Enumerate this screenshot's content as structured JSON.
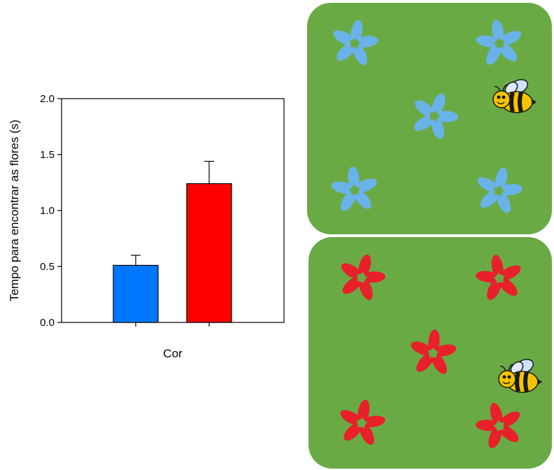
{
  "chart_data": {
    "type": "bar",
    "categories": [
      "",
      ""
    ],
    "values": [
      0.51,
      1.24
    ],
    "errors": [
      0.09,
      0.2
    ],
    "bar_colors": [
      "#0077ff",
      "#ff0000"
    ],
    "title": "",
    "xlabel": "Cor",
    "ylabel": "Tempo para encontrar as flores (s)",
    "ylim": [
      0,
      2.0
    ],
    "yticks": [
      "0.0",
      "0.5",
      "1.0",
      "1.5",
      "2.0"
    ],
    "grid": false,
    "legend": "none"
  },
  "panels": [
    {
      "background": "#6aaa45",
      "flower_color": "#6ab3ea",
      "flower_center": "#6aaa45",
      "icon": "bee-icon"
    },
    {
      "background": "#6aaa45",
      "flower_color": "#e8202a",
      "flower_center": "#6aaa45",
      "icon": "bee-icon"
    }
  ]
}
